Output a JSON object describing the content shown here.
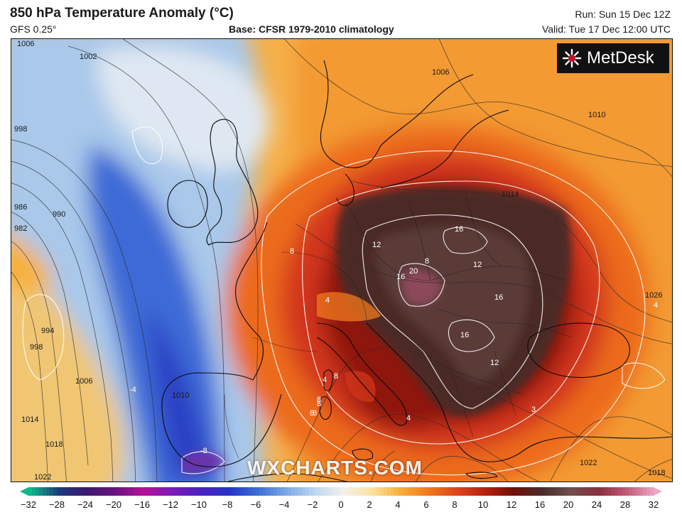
{
  "header": {
    "title": "850 hPa Temperature Anomaly (°C)",
    "subtitle": "GFS 0.25°",
    "base": "Base: CFSR 1979-2010 climatology",
    "run": "Run: Sun 15 Dec 12Z",
    "valid": "Valid: Tue 17 Dec 12:00 UTC"
  },
  "logo": {
    "text": "MetDesk"
  },
  "watermark": "WXCHARTS.COM",
  "colorbar": {
    "ticks": [
      "−32",
      "−28",
      "−24",
      "−20",
      "−16",
      "−12",
      "−10",
      "−8",
      "−6",
      "−4",
      "−2",
      "0",
      "2",
      "4",
      "6",
      "8",
      "10",
      "12",
      "16",
      "20",
      "24",
      "28",
      "32"
    ],
    "colors": [
      "#10b98a",
      "#1a3a7a",
      "#3d1870",
      "#6a1380",
      "#b6109a",
      "#7a1ab8",
      "#4a22c0",
      "#2433c8",
      "#3a6ed6",
      "#7aa8e4",
      "#bcd6f0",
      "#f2f1ec",
      "#fbe4a0",
      "#f7b13a",
      "#f07a1c",
      "#e0451a",
      "#b8200e",
      "#6e1006",
      "#4a2a28",
      "#6e4f4c",
      "#8a2e3c",
      "#c25a7a",
      "#f0a8c6"
    ]
  },
  "map": {
    "isobar_labels": [
      "1006",
      "1002",
      "998",
      "986",
      "990",
      "982",
      "994",
      "998",
      "1006",
      "1014",
      "1018",
      "1022",
      "1010",
      "1006",
      "1010",
      "1014",
      "1026",
      "1018",
      "1022"
    ],
    "contour_labels": [
      "12",
      "16",
      "16",
      "20",
      "8",
      "12",
      "16",
      "16",
      "12",
      "8",
      "8",
      "8",
      "8",
      "4",
      "4",
      "4",
      "4",
      "-4",
      "-8",
      "8",
      "8",
      "3"
    ]
  }
}
